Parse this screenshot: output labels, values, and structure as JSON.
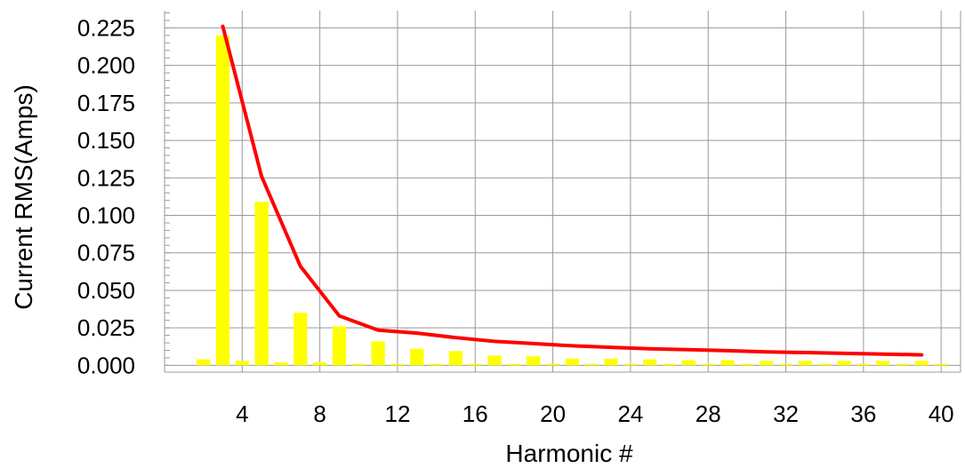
{
  "chart_data": {
    "type": "bar",
    "xlabel": "Harmonic #",
    "ylabel": "Current RMS(Amps)",
    "xlim": [
      0,
      41
    ],
    "ylim": [
      -0.0045,
      0.2365
    ],
    "grid": true,
    "x_ticks": [
      4,
      8,
      12,
      16,
      20,
      24,
      28,
      32,
      36,
      40
    ],
    "y_ticks": [
      0.0,
      0.025,
      0.05,
      0.075,
      0.1,
      0.125,
      0.15,
      0.175,
      0.2,
      0.225
    ],
    "y_tick_labels": [
      "0.000",
      "0.025",
      "0.050",
      "0.075",
      "0.100",
      "0.125",
      "0.150",
      "0.175",
      "0.200",
      "0.225"
    ],
    "x_tick_labels": [
      "4",
      "8",
      "12",
      "16",
      "20",
      "24",
      "28",
      "32",
      "36",
      "40"
    ],
    "series": [
      {
        "type": "bar",
        "color": "#ffff00",
        "x": [
          2,
          3,
          4,
          5,
          6,
          7,
          8,
          9,
          10,
          11,
          12,
          13,
          14,
          15,
          16,
          17,
          18,
          19,
          20,
          21,
          22,
          23,
          24,
          25,
          26,
          27,
          28,
          29,
          30,
          31,
          32,
          33,
          34,
          35,
          36,
          37,
          38,
          39,
          40
        ],
        "values": [
          0.004,
          0.22,
          0.003,
          0.109,
          0.002,
          0.035,
          0.002,
          0.026,
          0.001,
          0.016,
          0.001,
          0.011,
          0.001,
          0.0095,
          0.001,
          0.0065,
          0.001,
          0.006,
          0.001,
          0.0045,
          0.001,
          0.0045,
          0.001,
          0.004,
          0.001,
          0.0035,
          0.001,
          0.0035,
          0.001,
          0.003,
          0.001,
          0.003,
          0.001,
          0.003,
          0.001,
          0.003,
          0.001,
          0.003,
          0.001
        ]
      },
      {
        "type": "line",
        "color": "#ff0000",
        "x": [
          3,
          5,
          7,
          9,
          11,
          13,
          15,
          17,
          19,
          21,
          23,
          25,
          27,
          29,
          31,
          33,
          35,
          37,
          39
        ],
        "values": [
          0.226,
          0.126,
          0.066,
          0.033,
          0.0235,
          0.0215,
          0.0185,
          0.016,
          0.0145,
          0.013,
          0.012,
          0.011,
          0.0105,
          0.0098,
          0.009,
          0.0085,
          0.008,
          0.0075,
          0.007
        ]
      }
    ]
  }
}
